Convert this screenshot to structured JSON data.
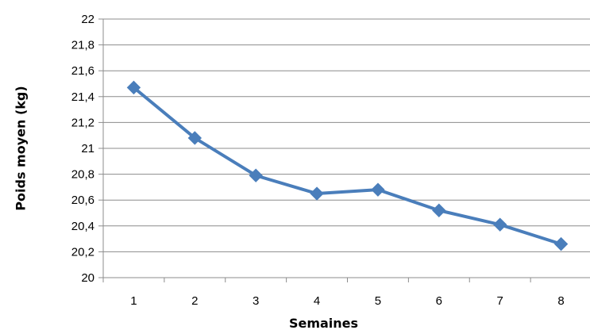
{
  "chart_data": {
    "type": "line",
    "xlabel": "Semaines",
    "ylabel": "Poids moyen (kg)",
    "categories": [
      "1",
      "2",
      "3",
      "4",
      "5",
      "6",
      "7",
      "8"
    ],
    "series": [
      {
        "values": [
          21.47,
          21.08,
          20.79,
          20.65,
          20.68,
          20.52,
          20.41,
          20.26
        ],
        "color": "#4a7ebb",
        "marker": "diamond"
      }
    ],
    "ylim": [
      20,
      22
    ],
    "yticks": [
      "20",
      "20,2",
      "20,4",
      "20,6",
      "20,8",
      "21",
      "21,2",
      "21,4",
      "21,6",
      "21,8",
      "22"
    ],
    "grid": true,
    "legend": "none"
  }
}
